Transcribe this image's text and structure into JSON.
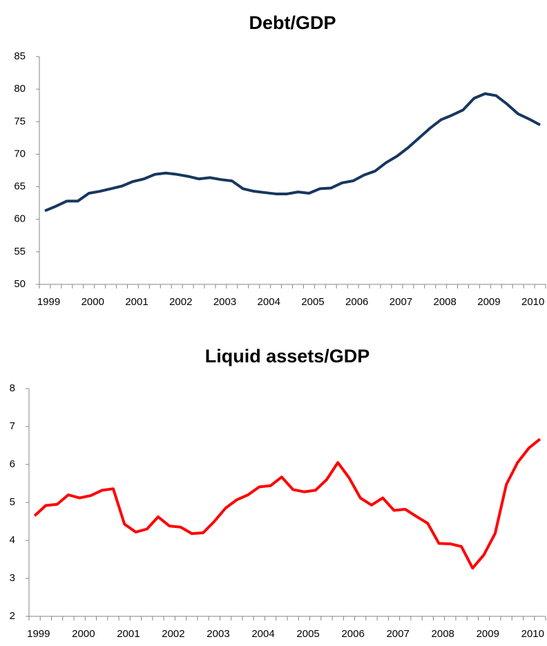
{
  "chart_data": [
    {
      "type": "line",
      "title": "Debt/GDP",
      "categories": [
        "1999",
        null,
        null,
        null,
        "2000",
        null,
        null,
        null,
        "2001",
        null,
        null,
        null,
        "2002",
        null,
        null,
        null,
        "2003",
        null,
        null,
        null,
        "2004",
        null,
        null,
        null,
        "2005",
        null,
        null,
        null,
        "2006",
        null,
        null,
        null,
        "2007",
        null,
        null,
        null,
        "2008",
        null,
        null,
        null,
        "2009",
        null,
        null,
        null,
        "2010",
        null
      ],
      "series": [
        {
          "name": "Debt/GDP",
          "color": "#17375e",
          "values": [
            61.3,
            62.0,
            62.8,
            62.8,
            64.0,
            64.3,
            64.7,
            65.1,
            65.8,
            66.2,
            66.9,
            67.1,
            66.9,
            66.6,
            66.2,
            66.4,
            66.1,
            65.9,
            64.7,
            64.3,
            64.1,
            63.9,
            63.9,
            64.2,
            64.0,
            64.7,
            64.8,
            65.6,
            65.9,
            66.8,
            67.4,
            68.7,
            69.7,
            71.0,
            72.5,
            74.0,
            75.3,
            76.0,
            76.8,
            78.6,
            79.3,
            79.0,
            77.7,
            76.2,
            75.4,
            74.5
          ]
        }
      ],
      "ylim": [
        50,
        85
      ],
      "yticks": [
        50,
        55,
        60,
        65,
        70,
        75,
        80,
        85
      ]
    },
    {
      "type": "line",
      "title": "Liquid assets/GDP",
      "categories": [
        "1999",
        null,
        null,
        null,
        "2000",
        null,
        null,
        null,
        "2001",
        null,
        null,
        null,
        "2002",
        null,
        null,
        null,
        "2003",
        null,
        null,
        null,
        "2004",
        null,
        null,
        null,
        "2005",
        null,
        null,
        null,
        "2006",
        null,
        null,
        null,
        "2007",
        null,
        null,
        null,
        "2008",
        null,
        null,
        null,
        "2009",
        null,
        null,
        null,
        "2010",
        null
      ],
      "series": [
        {
          "name": "Liquid assets/GDP",
          "color": "#ff0000",
          "values": [
            4.65,
            4.92,
            4.95,
            5.2,
            5.12,
            5.18,
            5.32,
            5.36,
            4.43,
            4.22,
            4.3,
            4.62,
            4.38,
            4.35,
            4.18,
            4.2,
            4.5,
            4.85,
            5.07,
            5.2,
            5.41,
            5.44,
            5.67,
            5.34,
            5.28,
            5.32,
            5.6,
            6.05,
            5.65,
            5.12,
            4.93,
            5.12,
            4.79,
            4.82,
            4.63,
            4.45,
            3.92,
            3.91,
            3.84,
            3.27,
            3.62,
            4.18,
            5.47,
            6.05,
            6.43,
            6.67
          ]
        }
      ],
      "ylim": [
        2,
        8
      ],
      "yticks": [
        2,
        3,
        4,
        5,
        6,
        7,
        8
      ]
    }
  ]
}
